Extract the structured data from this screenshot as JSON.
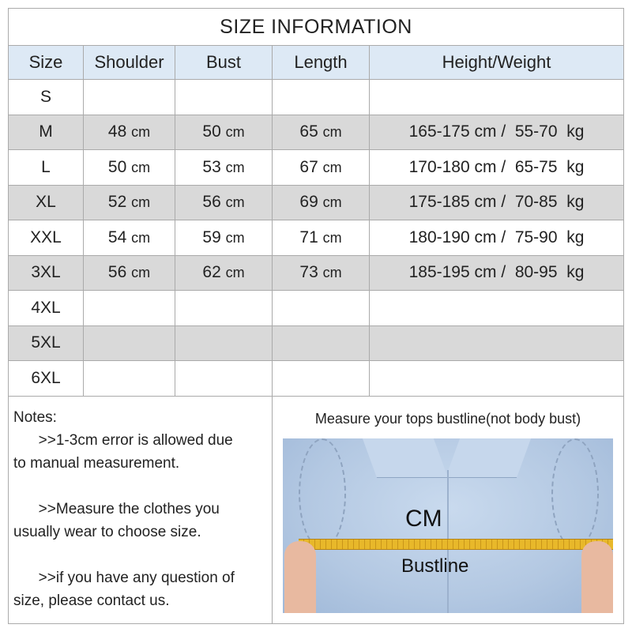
{
  "title": "SIZE  INFORMATION",
  "headers": [
    "Size",
    "Shoulder",
    "Bust",
    "Length",
    "Height/Weight"
  ],
  "rows": [
    {
      "size": "S",
      "shoulder": "",
      "bust": "",
      "length": "",
      "hw": ""
    },
    {
      "size": "M",
      "shoulder": "48",
      "bust": "50",
      "length": "65",
      "hw": "165-175 cm /  55-70  kg"
    },
    {
      "size": "L",
      "shoulder": "50",
      "bust": "53",
      "length": "67",
      "hw": "170-180 cm /  65-75  kg"
    },
    {
      "size": "XL",
      "shoulder": "52",
      "bust": "56",
      "length": "69",
      "hw": "175-185 cm /  70-85  kg"
    },
    {
      "size": "XXL",
      "shoulder": "54",
      "bust": "59",
      "length": "71",
      "hw": "180-190 cm /  75-90  kg"
    },
    {
      "size": "3XL",
      "shoulder": "56",
      "bust": "62",
      "length": "73",
      "hw": "185-195 cm /  80-95  kg"
    },
    {
      "size": "4XL",
      "shoulder": "",
      "bust": "",
      "length": "",
      "hw": ""
    },
    {
      "size": "5XL",
      "shoulder": "",
      "bust": "",
      "length": "",
      "hw": ""
    },
    {
      "size": "6XL",
      "shoulder": "",
      "bust": "",
      "length": "",
      "hw": ""
    }
  ],
  "unit": "cm",
  "notes": {
    "heading": "Notes:",
    "n1a": "      >>1-3cm error is allowed due",
    "n1b": "to manual measurement.",
    "n2a": "      >>Measure the clothes you",
    "n2b": "usually wear to choose size.",
    "n3a": "      >>if you have any question of",
    "n3b": "size, please contact us."
  },
  "measure": {
    "title": "Measure your tops bustline(not body bust)",
    "cm_label": "CM",
    "bustline_label": "Bustline"
  },
  "colors": {
    "header_bg": "#dde9f5",
    "stripe_bg": "#d9d9d9",
    "border": "#aaaaaa",
    "tape": "#e8b82a"
  }
}
